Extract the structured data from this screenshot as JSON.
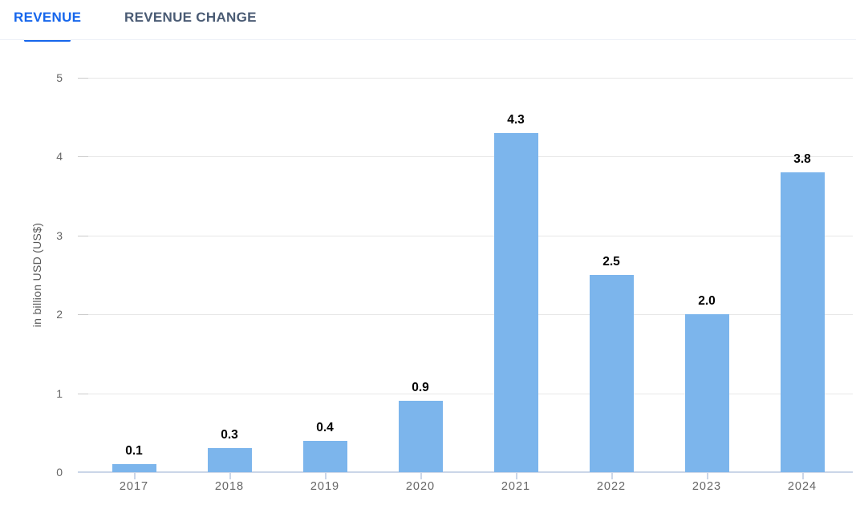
{
  "tabs": [
    {
      "label": "REVENUE",
      "active": true
    },
    {
      "label": "REVENUE CHANGE",
      "active": false
    }
  ],
  "colors": {
    "active_tab": "#1666EC",
    "inactive_tab": "#4A5B74",
    "bar": "#7CB5EC",
    "axis_line": "#CBD6E8",
    "gridline": "#E7E7E7",
    "tick_label_text": "#666666",
    "data_label_text": "#000000"
  },
  "chart_data": {
    "type": "bar",
    "title": "",
    "xlabel": "",
    "ylabel": "in billion USD (US$)",
    "categories": [
      "2017",
      "2018",
      "2019",
      "2020",
      "2021",
      "2022",
      "2023",
      "2024"
    ],
    "values": [
      0.1,
      0.3,
      0.4,
      0.9,
      4.3,
      2.5,
      2.0,
      3.8
    ],
    "data_labels": [
      "0.1",
      "0.3",
      "0.4",
      "0.9",
      "4.3",
      "2.5",
      "2.0",
      "3.8"
    ],
    "ylim": [
      0,
      5
    ],
    "yticks": [
      0,
      1,
      2,
      3,
      4,
      5
    ],
    "grid": "horizontal",
    "legend": "none"
  }
}
